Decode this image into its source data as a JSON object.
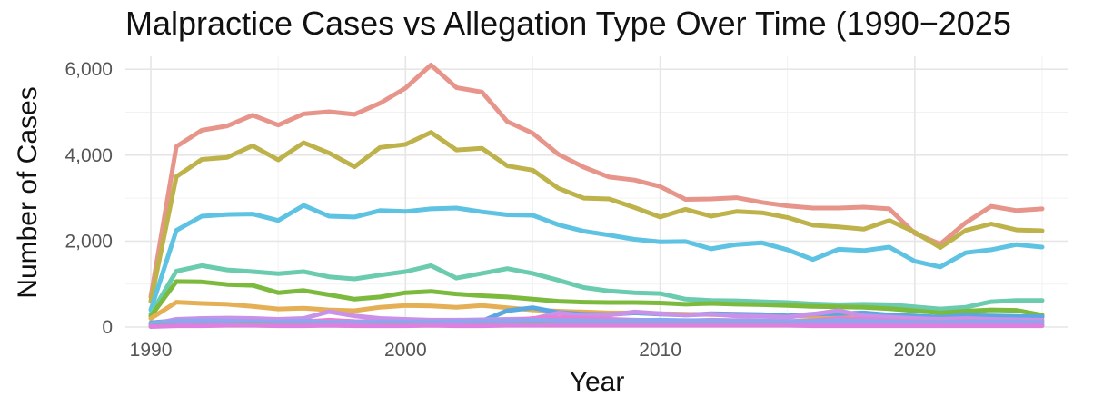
{
  "chart_data": {
    "type": "line",
    "title": "Malpractice Cases vs Allegation Type Over Time (1990−2025",
    "xlabel": "Year",
    "ylabel": "Number of Cases",
    "xlim": [
      1989,
      2026
    ],
    "ylim": [
      0,
      6300
    ],
    "x_ticks": [
      1990,
      2000,
      2010,
      2020
    ],
    "x_tick_labels": [
      "1990",
      "2000",
      "2010",
      "2020"
    ],
    "y_ticks": [
      0,
      2000,
      4000,
      6000
    ],
    "y_tick_labels": [
      "0",
      "2,000",
      "4,000",
      "6,000"
    ],
    "grid": true,
    "legend": "none",
    "x": [
      1990,
      1991,
      1992,
      1993,
      1994,
      1995,
      1996,
      1997,
      1998,
      1999,
      2000,
      2001,
      2002,
      2003,
      2004,
      2005,
      2006,
      2007,
      2008,
      2009,
      2010,
      2011,
      2012,
      2013,
      2014,
      2015,
      2016,
      2017,
      2018,
      2019,
      2020,
      2021,
      2022,
      2023,
      2024,
      2025
    ],
    "series": [
      {
        "color": "#E7958A",
        "values": [
          700,
          4200,
          4580,
          4680,
          4930,
          4700,
          4960,
          5010,
          4950,
          5210,
          5560,
          6100,
          5570,
          5470,
          4780,
          4510,
          4020,
          3720,
          3490,
          3420,
          3270,
          2970,
          2980,
          3010,
          2900,
          2820,
          2770,
          2770,
          2790,
          2750,
          2180,
          1930,
          2430,
          2810,
          2710,
          2750
        ]
      },
      {
        "color": "#BEB24A",
        "values": [
          600,
          3500,
          3900,
          3950,
          4220,
          3890,
          4290,
          4050,
          3730,
          4180,
          4250,
          4530,
          4120,
          4160,
          3750,
          3650,
          3230,
          3000,
          2980,
          2780,
          2560,
          2740,
          2580,
          2690,
          2660,
          2550,
          2370,
          2330,
          2280,
          2480,
          2210,
          1850,
          2250,
          2400,
          2260,
          2240
        ]
      },
      {
        "color": "#5EC2E2",
        "values": [
          400,
          2250,
          2580,
          2620,
          2630,
          2480,
          2830,
          2580,
          2560,
          2710,
          2690,
          2750,
          2770,
          2680,
          2610,
          2600,
          2380,
          2230,
          2140,
          2040,
          1980,
          1990,
          1820,
          1920,
          1960,
          1800,
          1570,
          1810,
          1780,
          1860,
          1530,
          1400,
          1730,
          1800,
          1920,
          1860
        ]
      },
      {
        "color": "#6ACBAE",
        "values": [
          300,
          1300,
          1430,
          1330,
          1290,
          1240,
          1290,
          1170,
          1120,
          1210,
          1290,
          1430,
          1140,
          1250,
          1360,
          1250,
          1090,
          920,
          840,
          800,
          780,
          650,
          620,
          610,
          590,
          570,
          540,
          520,
          530,
          520,
          470,
          420,
          460,
          590,
          620,
          620
        ]
      },
      {
        "color": "#7CBA3E",
        "values": [
          250,
          1060,
          1050,
          990,
          970,
          800,
          850,
          750,
          650,
          700,
          800,
          830,
          770,
          730,
          700,
          650,
          600,
          580,
          570,
          570,
          560,
          530,
          550,
          530,
          520,
          500,
          480,
          470,
          460,
          430,
          380,
          330,
          370,
          400,
          390,
          280
        ]
      },
      {
        "color": "#E5AF55",
        "values": [
          200,
          580,
          550,
          530,
          480,
          420,
          440,
          400,
          380,
          460,
          500,
          490,
          460,
          500,
          450,
          400,
          370,
          350,
          330,
          330,
          310,
          300,
          290,
          280,
          270,
          260,
          250,
          230,
          220,
          220,
          210,
          210,
          220,
          200,
          180,
          230
        ]
      },
      {
        "color": "#5AA8E0",
        "values": [
          100,
          150,
          160,
          180,
          160,
          130,
          150,
          100,
          80,
          90,
          100,
          110,
          120,
          140,
          380,
          450,
          340,
          300,
          290,
          330,
          300,
          280,
          310,
          300,
          290,
          260,
          300,
          310,
          330,
          280,
          260,
          230,
          270,
          260,
          250,
          240
        ]
      },
      {
        "color": "#C991E8",
        "values": [
          60,
          180,
          200,
          210,
          200,
          180,
          200,
          360,
          260,
          200,
          180,
          160,
          160,
          170,
          180,
          190,
          330,
          260,
          280,
          350,
          310,
          280,
          300,
          260,
          250,
          230,
          300,
          380,
          260,
          230,
          200,
          180,
          200,
          180,
          170,
          160
        ]
      },
      {
        "color": "#EC7BD2",
        "values": [
          30,
          90,
          110,
          120,
          140,
          100,
          120,
          160,
          130,
          120,
          110,
          100,
          90,
          110,
          130,
          200,
          220,
          200,
          180,
          160,
          150,
          140,
          160,
          150,
          140,
          130,
          150,
          200,
          180,
          150,
          120,
          110,
          130,
          120,
          110,
          100
        ]
      },
      {
        "color": "#8EA6F0",
        "values": [
          80,
          140,
          150,
          140,
          130,
          120,
          140,
          110,
          110,
          120,
          120,
          120,
          130,
          140,
          140,
          160,
          150,
          150,
          140,
          150,
          160,
          150,
          150,
          140,
          140,
          130,
          140,
          150,
          140,
          130,
          110,
          110,
          120,
          120,
          120,
          110
        ]
      },
      {
        "color": "#56C98A",
        "values": [
          20,
          50,
          60,
          60,
          70,
          60,
          60,
          60,
          50,
          60,
          60,
          60,
          50,
          60,
          60,
          70,
          60,
          60,
          60,
          60,
          60,
          60,
          60,
          60,
          60,
          60,
          50,
          50,
          50,
          50,
          40,
          40,
          40,
          40,
          40,
          40
        ]
      },
      {
        "color": "#DD80E0",
        "values": [
          10,
          30,
          30,
          40,
          40,
          30,
          30,
          40,
          30,
          30,
          30,
          40,
          30,
          30,
          40,
          40,
          40,
          40,
          40,
          40,
          40,
          40,
          40,
          40,
          40,
          40,
          30,
          30,
          30,
          30,
          30,
          30,
          30,
          30,
          30,
          30
        ]
      }
    ]
  }
}
